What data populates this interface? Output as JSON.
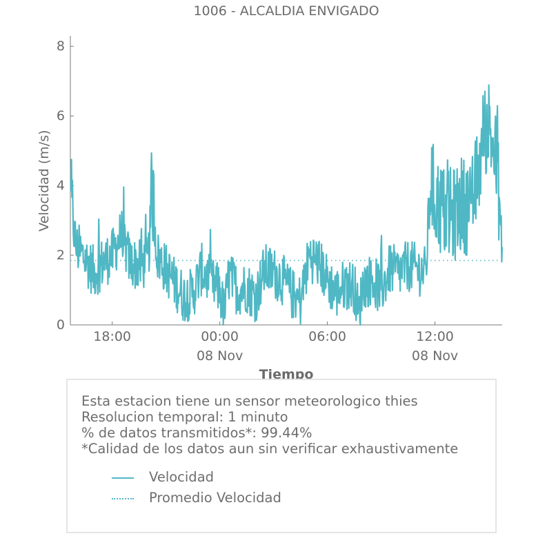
{
  "chart_data": {
    "type": "line",
    "title": "1006 - ALCALDIA ENVIGADO",
    "xlabel": "Tiempo",
    "ylabel": "Velocidad (m/s)",
    "x_range": [
      "2016-11-07 15:40",
      "2016-11-08 15:45"
    ],
    "ylim": [
      0,
      8.3
    ],
    "y_ticks": [
      "0",
      "2",
      "4",
      "6",
      "8"
    ],
    "x_ticks": [
      {
        "label": "18:00",
        "sublabel": "",
        "time": "2016-11-07 18:00"
      },
      {
        "label": "00:00",
        "sublabel": "08 Nov",
        "time": "2016-11-08 00:00"
      },
      {
        "label": "06:00",
        "sublabel": "",
        "time": "2016-11-08 06:00"
      },
      {
        "label": "12:00",
        "sublabel": "08 Nov",
        "time": "2016-11-08 12:00"
      }
    ],
    "series": [
      {
        "name": "Velocidad",
        "style": "solid",
        "color": "#4fb8c4",
        "x_hours": [
          15.7,
          16,
          16.5,
          17,
          17.5,
          18,
          18.5,
          19,
          19.5,
          20,
          20.25,
          20.5,
          21,
          21.5,
          22,
          22.5,
          23,
          23.5,
          24,
          24.25,
          24.5,
          25,
          25.5,
          26,
          26.5,
          27,
          27.5,
          28,
          28.5,
          29,
          29.5,
          30,
          30.5,
          31,
          31.5,
          31.75,
          32,
          32.5,
          33,
          33.5,
          34,
          34.5,
          35,
          35.5,
          35.75,
          36,
          36.5,
          37,
          37.5,
          38,
          38.5,
          38.75,
          39,
          39.5,
          39.75
        ],
        "values": [
          3.4,
          2.2,
          1.9,
          1.5,
          1.8,
          2.0,
          2.6,
          1.8,
          1.7,
          1.8,
          3.8,
          2.0,
          1.6,
          1.2,
          0.8,
          0.9,
          1.6,
          1.2,
          1.0,
          0.3,
          1.4,
          1.0,
          1.1,
          0.8,
          1.6,
          1.5,
          1.3,
          0.9,
          0.7,
          2.0,
          1.8,
          1.3,
          0.9,
          1.2,
          1.1,
          0.3,
          1.2,
          1.3,
          1.0,
          1.6,
          1.5,
          1.7,
          1.6,
          1.5,
          4.2,
          3.6,
          3.2,
          3.1,
          3.5,
          3.3,
          4.6,
          5.6,
          5.8,
          4.4,
          2.0
        ]
      },
      {
        "name": "Promedio Velocidad",
        "style": "dotted",
        "color": "#4fb8c4",
        "value": 1.85
      }
    ],
    "grid": false,
    "legend_placement": "below"
  },
  "info": {
    "line1": "Esta estacion tiene un sensor meteorologico thies",
    "line2": "Resolucion temporal: 1 minuto",
    "line3": "% de datos transmitidos*: 99.44%",
    "line4": "*Calidad de los datos aun sin verificar exhaustivamente"
  },
  "legend": {
    "series1": "Velocidad",
    "series2": "Promedio Velocidad"
  }
}
